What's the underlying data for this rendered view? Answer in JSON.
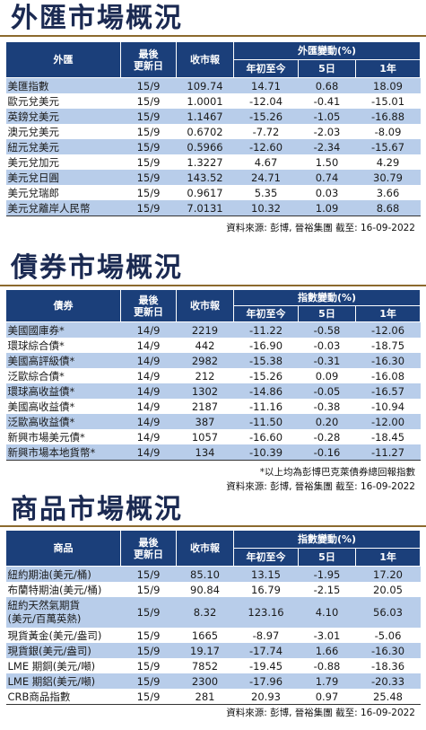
{
  "forex": {
    "title": "外匯市場概況",
    "headers": {
      "name": "外匯",
      "date": "最後\n更新日",
      "close": "收市報",
      "change_group": "外匯變動(%)",
      "ytd": "年初至今",
      "d5": "5日",
      "y1": "1年"
    },
    "rows": [
      [
        "美匯指數",
        "15/9",
        "109.74",
        "14.71",
        "0.68",
        "18.09"
      ],
      [
        "歐元兌美元",
        "15/9",
        "1.0001",
        "-12.04",
        "-0.41",
        "-15.01"
      ],
      [
        "英鎊兌美元",
        "15/9",
        "1.1467",
        "-15.26",
        "-1.05",
        "-16.88"
      ],
      [
        "澳元兌美元",
        "15/9",
        "0.6702",
        "-7.72",
        "-2.03",
        "-8.09"
      ],
      [
        "紐元兌美元",
        "15/9",
        "0.5966",
        "-12.60",
        "-2.34",
        "-15.67"
      ],
      [
        "美元兌加元",
        "15/9",
        "1.3227",
        "4.67",
        "1.50",
        "4.29"
      ],
      [
        "美元兌日圓",
        "15/9",
        "143.52",
        "24.71",
        "0.74",
        "30.79"
      ],
      [
        "美元兌瑞郎",
        "15/9",
        "0.9617",
        "5.35",
        "0.03",
        "3.66"
      ],
      [
        "美元兌離岸人民幣",
        "15/9",
        "7.0131",
        "10.32",
        "1.09",
        "8.68"
      ]
    ],
    "source": "資料來源: 彭博, 晉裕集團 截至: 16-09-2022"
  },
  "bonds": {
    "title": "債券市場概況",
    "headers": {
      "name": "債券",
      "date": "最後\n更新日",
      "close": "收市報",
      "change_group": "指數變動(%)",
      "ytd": "年初至今",
      "d5": "5日",
      "y1": "1年"
    },
    "rows": [
      [
        "美國國庫券*",
        "14/9",
        "2219",
        "-11.22",
        "-0.58",
        "-12.06"
      ],
      [
        "環球綜合債*",
        "14/9",
        "442",
        "-16.90",
        "-0.03",
        "-18.75"
      ],
      [
        "美國高評級債*",
        "14/9",
        "2982",
        "-15.38",
        "-0.31",
        "-16.30"
      ],
      [
        "泛歐綜合債*",
        "14/9",
        "212",
        "-15.26",
        "0.09",
        "-16.08"
      ],
      [
        "環球高收益債*",
        "14/9",
        "1302",
        "-14.86",
        "-0.05",
        "-16.57"
      ],
      [
        "美國高收益債*",
        "14/9",
        "2187",
        "-11.16",
        "-0.38",
        "-10.94"
      ],
      [
        "泛歐高收益債*",
        "14/9",
        "387",
        "-11.50",
        "0.20",
        "-12.00"
      ],
      [
        "新興市場美元債*",
        "14/9",
        "1057",
        "-16.60",
        "-0.28",
        "-18.45"
      ],
      [
        "新興市場本地貨幣*",
        "14/9",
        "134",
        "-10.39",
        "-0.16",
        "-11.27"
      ]
    ],
    "note": "*以上均為彭博巴克萊債券總回報指數",
    "source": "資料來源: 彭博, 晉裕集團 截至: 16-09-2022"
  },
  "commodities": {
    "title": "商品市場概況",
    "headers": {
      "name": "商品",
      "date": "最後\n更新日",
      "close": "收市報",
      "change_group": "指數變動(%)",
      "ytd": "年初至今",
      "d5": "5日",
      "y1": "1年"
    },
    "rows": [
      [
        "紐約期油(美元/桶)",
        "15/9",
        "85.10",
        "13.15",
        "-1.95",
        "17.20"
      ],
      [
        "布蘭特期油(美元/桶)",
        "15/9",
        "90.84",
        "16.79",
        "-2.15",
        "20.05"
      ],
      [
        "紐約天然氣期貨\n(美元/百萬英熱)",
        "15/9",
        "8.32",
        "123.16",
        "4.10",
        "56.03"
      ],
      [
        "現貨黃金(美元/盎司)",
        "15/9",
        "1665",
        "-8.97",
        "-3.01",
        "-5.06"
      ],
      [
        "現貨銀(美元/盎司)",
        "15/9",
        "19.17",
        "-17.74",
        "1.66",
        "-16.30"
      ],
      [
        "LME 期銅(美元/噸)",
        "15/9",
        "7852",
        "-19.45",
        "-0.88",
        "-18.36"
      ],
      [
        "LME 期鋁(美元/噸)",
        "15/9",
        "2300",
        "-17.96",
        "1.79",
        "-20.33"
      ],
      [
        "CRB商品指數",
        "15/9",
        "281",
        "20.93",
        "0.97",
        "25.48"
      ]
    ],
    "source": "資料來源: 彭博, 晉裕集團 截至: 16-09-2022"
  }
}
